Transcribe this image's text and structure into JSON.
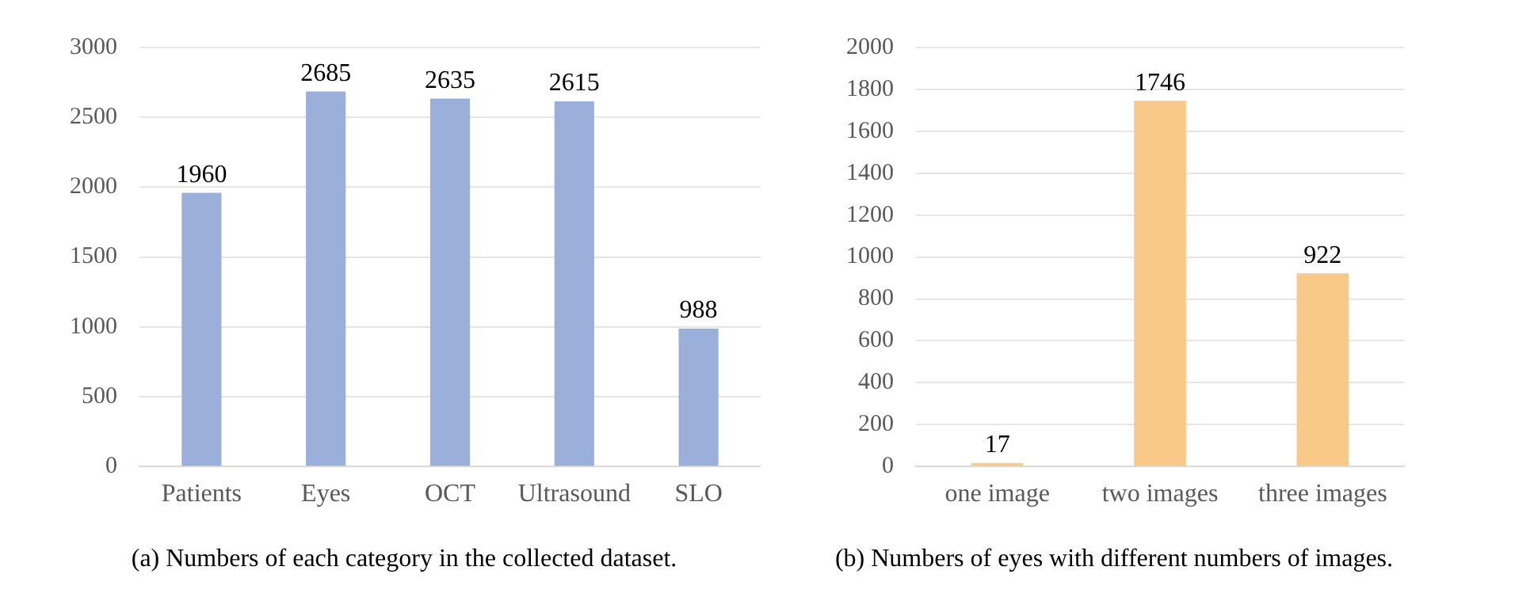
{
  "chart_data": [
    {
      "type": "bar",
      "title": "(a) Numbers of each category in the collected dataset.",
      "categories": [
        "Patients",
        "Eyes",
        "OCT",
        "Ultrasound",
        "SLO"
      ],
      "values": [
        1960,
        2685,
        2635,
        2615,
        988
      ],
      "color": "#9aafda",
      "ylim": [
        0,
        3000
      ],
      "yticks": [
        0,
        500,
        1000,
        1500,
        2000,
        2500,
        3000
      ],
      "grid": "y",
      "data_labels": true
    },
    {
      "type": "bar",
      "title": "(b) Numbers of eyes with different numbers of images.",
      "categories": [
        "one image",
        "two images",
        "three images"
      ],
      "values": [
        17,
        1746,
        922
      ],
      "color": "#f9c98a",
      "ylim": [
        0,
        2000
      ],
      "yticks": [
        0,
        200,
        400,
        600,
        800,
        1000,
        1200,
        1400,
        1600,
        1800,
        2000
      ],
      "grid": "y",
      "data_labels": true
    }
  ]
}
